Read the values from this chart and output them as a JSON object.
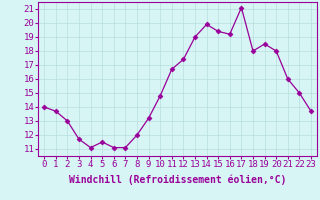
{
  "x": [
    0,
    1,
    2,
    3,
    4,
    5,
    6,
    7,
    8,
    9,
    10,
    11,
    12,
    13,
    14,
    15,
    16,
    17,
    18,
    19,
    20,
    21,
    22,
    23
  ],
  "y": [
    14.0,
    13.7,
    13.0,
    11.7,
    11.1,
    11.5,
    11.1,
    11.1,
    12.0,
    13.2,
    14.8,
    16.7,
    17.4,
    19.0,
    19.9,
    19.4,
    19.2,
    21.1,
    18.0,
    18.5,
    18.0,
    16.0,
    15.0,
    13.7
  ],
  "line_color": "#990099",
  "marker": "D",
  "marker_size": 2.5,
  "background_color": "#d8f5f5",
  "grid_color": "#b8dede",
  "xlabel": "Windchill (Refroidissement éolien,°C)",
  "xlabel_fontsize": 7,
  "ylabel_ticks": [
    11,
    12,
    13,
    14,
    15,
    16,
    17,
    18,
    19,
    20,
    21
  ],
  "xlim": [
    -0.5,
    23.5
  ],
  "ylim": [
    10.5,
    21.5
  ],
  "tick_fontsize": 6.5,
  "title": ""
}
